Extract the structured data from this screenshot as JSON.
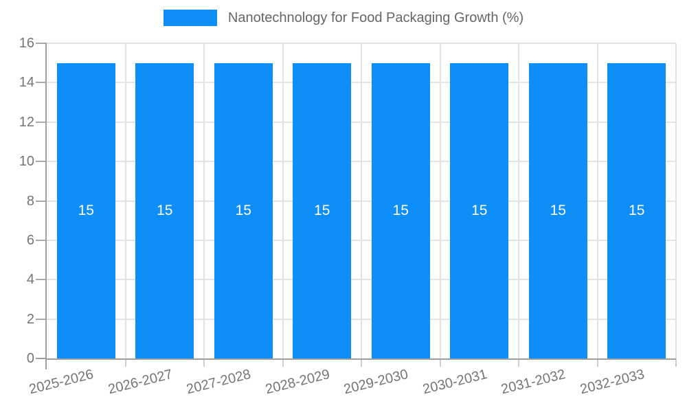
{
  "chart_data": {
    "type": "bar",
    "title": "Nanotechnology for Food Packaging Growth (%)",
    "categories": [
      "2025-2026",
      "2026-2027",
      "2027-2028",
      "2028-2029",
      "2029-2030",
      "2030-2031",
      "2031-2032",
      "2032-2033"
    ],
    "series": [
      {
        "name": "Nanotechnology for Food Packaging Growth (%)",
        "values": [
          15,
          15,
          15,
          15,
          15,
          15,
          15,
          15
        ]
      }
    ],
    "bar_value_labels": [
      "15",
      "15",
      "15",
      "15",
      "15",
      "15",
      "15",
      "15"
    ],
    "xlabel": "",
    "ylabel": "",
    "ylim": [
      0,
      16
    ],
    "ytick_step": 2,
    "ytick_labels": [
      "0",
      "2",
      "4",
      "6",
      "8",
      "10",
      "12",
      "14",
      "16"
    ],
    "grid": true,
    "legend_position": "top"
  },
  "colors": {
    "bar": "#0d8ef8",
    "legend_text": "#666666",
    "axis_text": "#757575",
    "grid_line": "#e3e3e3",
    "axis_line": "#9e9e9e",
    "minor_tick": "#cfcfcf",
    "bar_label_text": "#ffffff",
    "background": "#ffffff"
  }
}
